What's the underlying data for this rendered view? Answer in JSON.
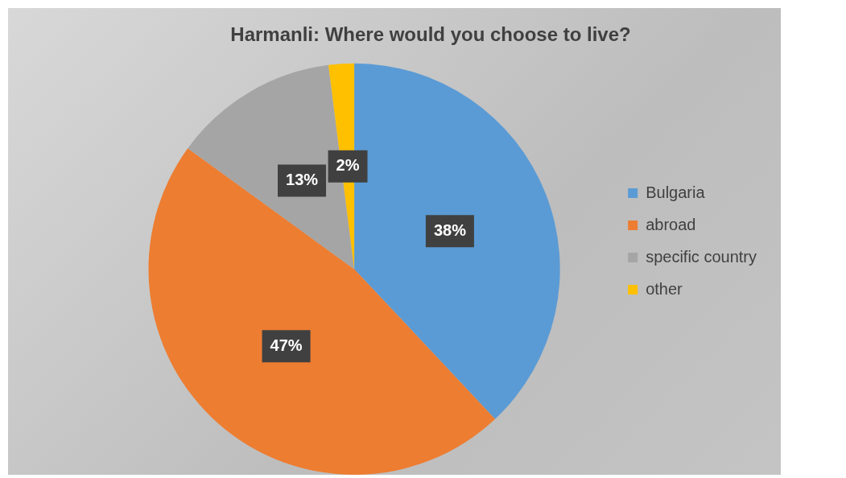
{
  "chart_data": {
    "type": "pie",
    "title": "Harmanli: Where would you choose to live?",
    "categories": [
      "Bulgaria",
      "abroad",
      "specific country",
      "other"
    ],
    "values": [
      38,
      47,
      13,
      2
    ],
    "colors": [
      "#5b9bd5",
      "#ed7d31",
      "#a5a5a5",
      "#ffc000"
    ],
    "value_labels": [
      "38%",
      "47%",
      "13%",
      "2%"
    ],
    "legend": "right"
  }
}
